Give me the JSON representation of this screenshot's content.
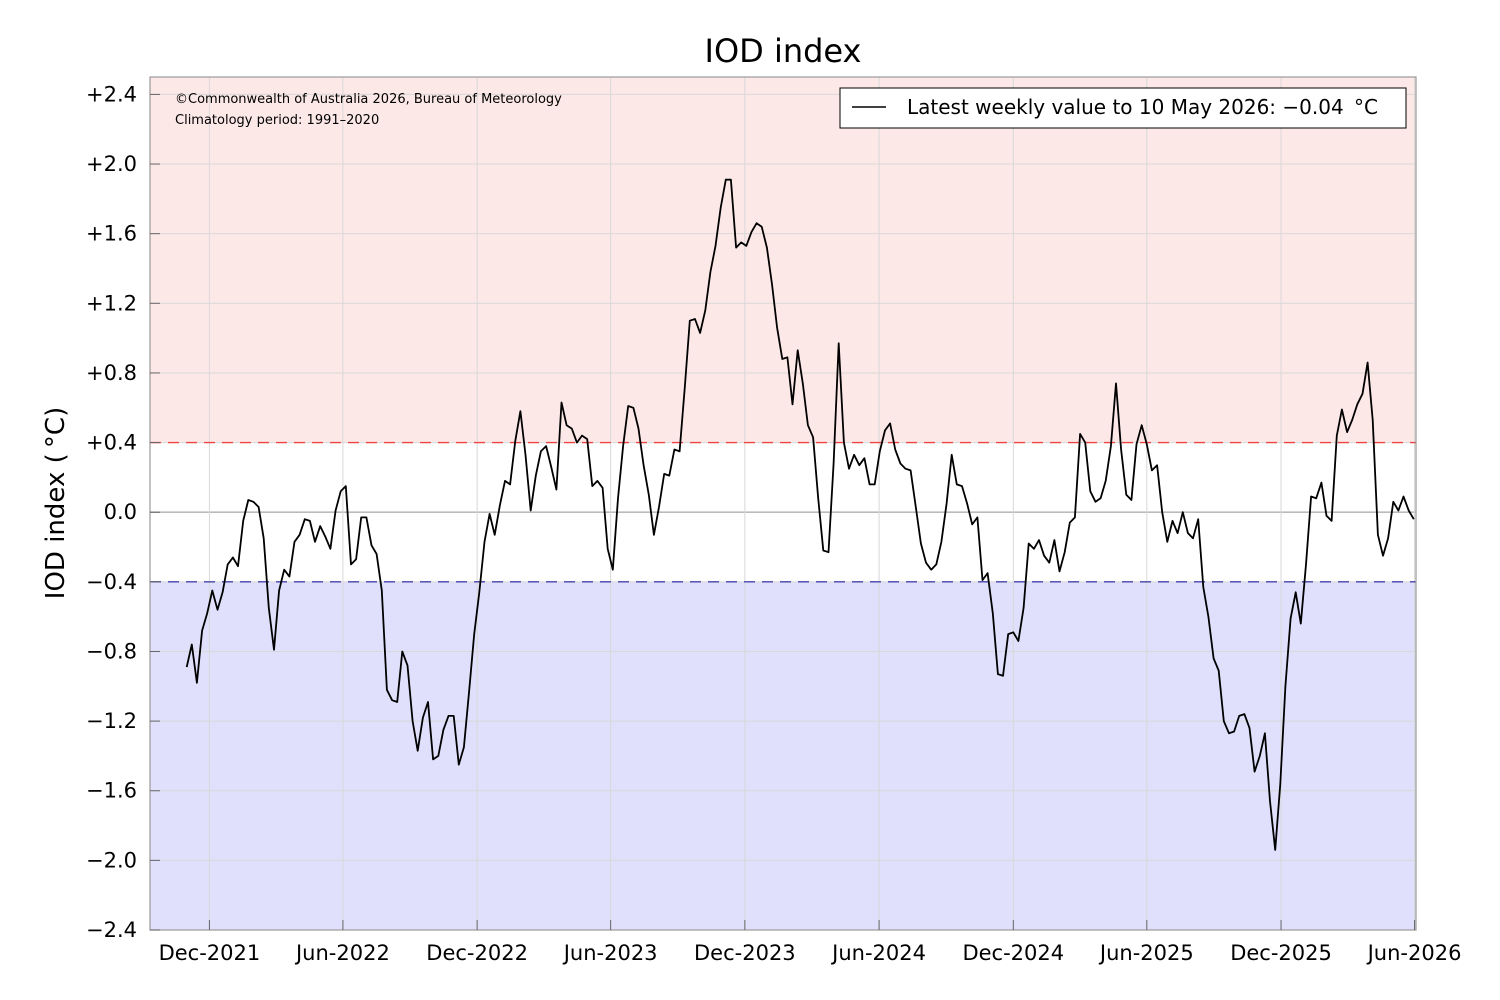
{
  "chart_data": {
    "type": "line",
    "title": "IOD index",
    "ylabel": "IOD index ( °C)",
    "xlabel": "",
    "ylim": [
      -2.4,
      2.5
    ],
    "xlim": [
      "2021-09-11",
      "2026-06-03"
    ],
    "grid": true,
    "legend_placement": "top-right",
    "y_ticks": [
      {
        "value": 2.4,
        "label": "+2.4"
      },
      {
        "value": 2.0,
        "label": "+2.0"
      },
      {
        "value": 1.6,
        "label": "+1.6"
      },
      {
        "value": 1.2,
        "label": "+1.2"
      },
      {
        "value": 0.8,
        "label": "+0.8"
      },
      {
        "value": 0.4,
        "label": "+0.4"
      },
      {
        "value": 0.0,
        "label": "0.0"
      },
      {
        "value": -0.4,
        "label": "−0.4"
      },
      {
        "value": -0.8,
        "label": "−0.8"
      },
      {
        "value": -1.2,
        "label": "−1.2"
      },
      {
        "value": -1.6,
        "label": "−1.6"
      },
      {
        "value": -2.0,
        "label": "−2.0"
      },
      {
        "value": -2.4,
        "label": "−2.4"
      }
    ],
    "x_ticks": [
      {
        "date": "2021-12-01",
        "label": "Dec-2021"
      },
      {
        "date": "2022-06-01",
        "label": "Jun-2022"
      },
      {
        "date": "2022-12-01",
        "label": "Dec-2022"
      },
      {
        "date": "2023-06-01",
        "label": "Jun-2023"
      },
      {
        "date": "2023-12-01",
        "label": "Dec-2023"
      },
      {
        "date": "2024-06-01",
        "label": "Jun-2024"
      },
      {
        "date": "2024-12-01",
        "label": "Dec-2024"
      },
      {
        "date": "2025-06-01",
        "label": "Jun-2025"
      },
      {
        "date": "2025-12-01",
        "label": "Dec-2025"
      },
      {
        "date": "2026-06-01",
        "label": "Jun-2026"
      }
    ],
    "thresholds": {
      "positive": 0.4,
      "negative": -0.4,
      "positive_color": "#ee4444",
      "negative_color": "#4444aa",
      "positive_fill": "#fde8e8",
      "negative_fill": "#e0e0fc"
    },
    "annotations": [
      "©Commonwealth of Australia 2026, Bureau of Meteorology",
      "Climatology period: 1991–2020"
    ],
    "series": [
      {
        "name": "Latest weekly value to 10 May 2026: −0.04  °C",
        "color": "#000000",
        "x_start": "2021-10-31",
        "x_step_days": 7,
        "values": [
          -0.89,
          -0.76,
          -0.98,
          -0.68,
          -0.58,
          -0.45,
          -0.56,
          -0.46,
          -0.3,
          -0.26,
          -0.31,
          -0.05,
          0.07,
          0.06,
          0.03,
          -0.15,
          -0.55,
          -0.79,
          -0.45,
          -0.33,
          -0.37,
          -0.17,
          -0.13,
          -0.04,
          -0.05,
          -0.17,
          -0.08,
          -0.14,
          -0.21,
          0.01,
          0.12,
          0.15,
          -0.3,
          -0.27,
          -0.03,
          -0.03,
          -0.19,
          -0.24,
          -0.45,
          -1.02,
          -1.08,
          -1.09,
          -0.8,
          -0.88,
          -1.2,
          -1.37,
          -1.18,
          -1.09,
          -1.42,
          -1.4,
          -1.25,
          -1.17,
          -1.17,
          -1.45,
          -1.35,
          -1.03,
          -0.7,
          -0.46,
          -0.17,
          -0.01,
          -0.13,
          0.04,
          0.18,
          0.16,
          0.41,
          0.58,
          0.33,
          0.01,
          0.21,
          0.35,
          0.38,
          0.26,
          0.13,
          0.63,
          0.5,
          0.48,
          0.4,
          0.44,
          0.42,
          0.15,
          0.18,
          0.14,
          -0.21,
          -0.33,
          0.08,
          0.38,
          0.61,
          0.6,
          0.48,
          0.27,
          0.1,
          -0.13,
          0.03,
          0.22,
          0.21,
          0.36,
          0.35,
          0.71,
          1.1,
          1.11,
          1.03,
          1.16,
          1.38,
          1.53,
          1.75,
          1.91,
          1.91,
          1.52,
          1.55,
          1.53,
          1.61,
          1.66,
          1.64,
          1.52,
          1.31,
          1.06,
          0.88,
          0.89,
          0.62,
          0.93,
          0.74,
          0.5,
          0.43,
          0.08,
          -0.22,
          -0.23,
          0.28,
          0.97,
          0.4,
          0.25,
          0.33,
          0.27,
          0.31,
          0.16,
          0.16,
          0.35,
          0.47,
          0.51,
          0.36,
          0.28,
          0.25,
          0.24,
          0.03,
          -0.18,
          -0.29,
          -0.33,
          -0.3,
          -0.17,
          0.05,
          0.33,
          0.16,
          0.15,
          0.05,
          -0.07,
          -0.03,
          -0.39,
          -0.35,
          -0.58,
          -0.93,
          -0.94,
          -0.7,
          -0.69,
          -0.74,
          -0.55,
          -0.18,
          -0.21,
          -0.16,
          -0.25,
          -0.29,
          -0.16,
          -0.34,
          -0.23,
          -0.06,
          -0.03,
          0.45,
          0.4,
          0.12,
          0.06,
          0.08,
          0.18,
          0.38,
          0.74,
          0.36,
          0.1,
          0.07,
          0.39,
          0.5,
          0.39,
          0.24,
          0.27,
          0.0,
          -0.17,
          -0.05,
          -0.12,
          0.0,
          -0.12,
          -0.15,
          -0.04,
          -0.43,
          -0.6,
          -0.84,
          -0.91,
          -1.2,
          -1.27,
          -1.26,
          -1.17,
          -1.16,
          -1.24,
          -1.49,
          -1.4,
          -1.27,
          -1.66,
          -1.94,
          -1.56,
          -1.0,
          -0.61,
          -0.46,
          -0.64,
          -0.3,
          0.09,
          0.08,
          0.17,
          -0.02,
          -0.05,
          0.44,
          0.59,
          0.46,
          0.53,
          0.62,
          0.68,
          0.86,
          0.53,
          -0.13,
          -0.25,
          -0.15,
          0.06,
          0.01,
          0.09,
          0.01,
          -0.04
        ]
      }
    ]
  }
}
